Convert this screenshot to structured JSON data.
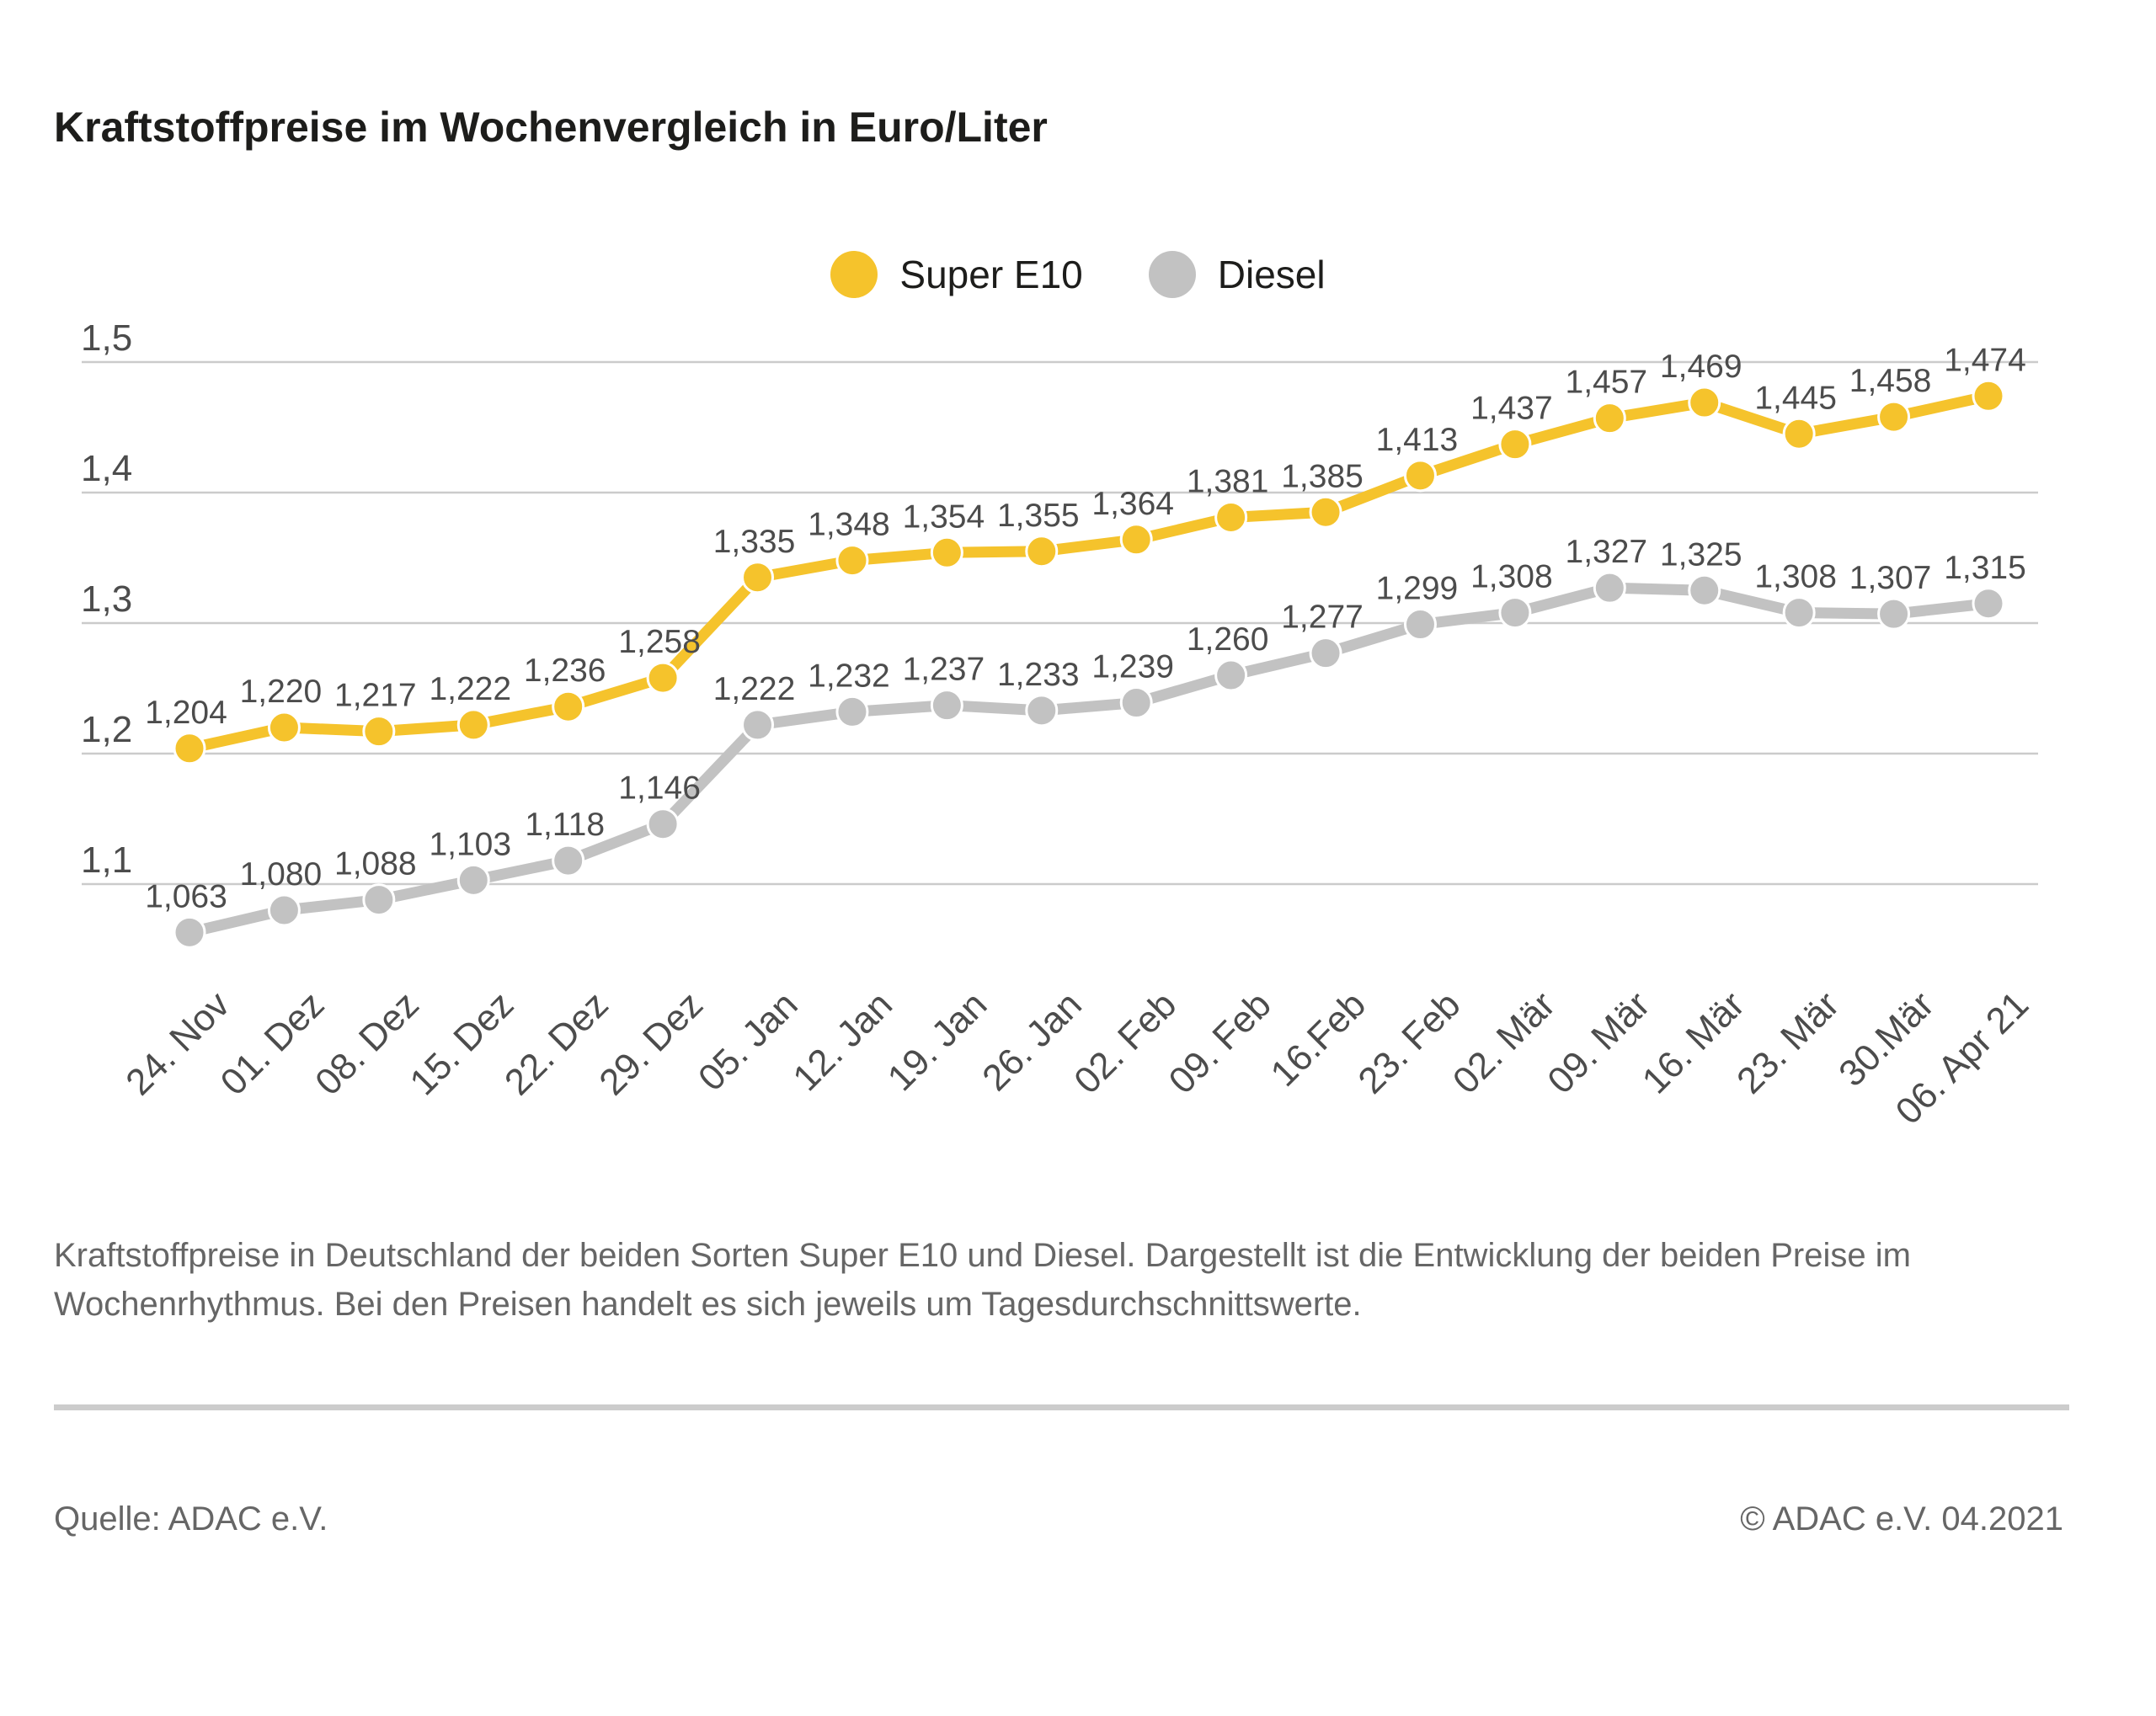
{
  "title": "Kraftstoffpreise im Wochenvergleich in Euro/Liter",
  "legend": {
    "items": [
      {
        "label": "Super E10",
        "color": "#F5C32C"
      },
      {
        "label": "Diesel",
        "color": "#C2C2C2"
      }
    ]
  },
  "chart_data": {
    "type": "line",
    "title": "Kraftstoffpreise im Wochenvergleich in Euro/Liter",
    "unit": "Euro/Liter",
    "categories": [
      "24. Nov",
      "01. Dez",
      "08. Dez",
      "15. Dez",
      "22. Dez",
      "29. Dez",
      "05. Jan",
      "12. Jan",
      "19. Jan",
      "26. Jan",
      "02. Feb",
      "09. Feb",
      "16.Feb",
      "23. Feb",
      "02. Mär",
      "09. Mär",
      "16. Mär",
      "23. Mär",
      "30.Mär",
      "06. Apr 21"
    ],
    "series": [
      {
        "name": "Super E10",
        "color": "#F5C32C",
        "values": [
          1.204,
          1.22,
          1.217,
          1.222,
          1.236,
          1.258,
          1.335,
          1.348,
          1.354,
          1.355,
          1.364,
          1.381,
          1.385,
          1.413,
          1.437,
          1.457,
          1.469,
          1.445,
          1.458,
          1.474
        ]
      },
      {
        "name": "Diesel",
        "color": "#C2C2C2",
        "values": [
          1.063,
          1.08,
          1.088,
          1.103,
          1.118,
          1.146,
          1.222,
          1.232,
          1.237,
          1.233,
          1.239,
          1.26,
          1.277,
          1.299,
          1.308,
          1.327,
          1.325,
          1.308,
          1.307,
          1.315
        ]
      }
    ],
    "ylim": [
      1.05,
      1.5
    ],
    "yticks": [
      {
        "value": 1.5,
        "label": "1,5"
      },
      {
        "value": 1.4,
        "label": "1,4"
      },
      {
        "value": 1.3,
        "label": "1,3"
      },
      {
        "value": 1.2,
        "label": "1,2"
      },
      {
        "value": 1.1,
        "label": "1,1"
      }
    ],
    "grid": true,
    "legend_position": "top-center",
    "value_label_format": "comma-decimal-3"
  },
  "caption": {
    "line1": "Kraftstoffpreise in Deutschland der beiden Sorten Super E10 und Diesel. Dargestellt ist die Entwicklung der beiden Preise im",
    "line2": "Wochenrhythmus. Bei den Preisen handelt es sich jeweils um Tagesdurchschnittswerte."
  },
  "footer": {
    "source": "Quelle: ADAC e.V.",
    "copyright": "© ADAC e.V. 04.2021"
  }
}
